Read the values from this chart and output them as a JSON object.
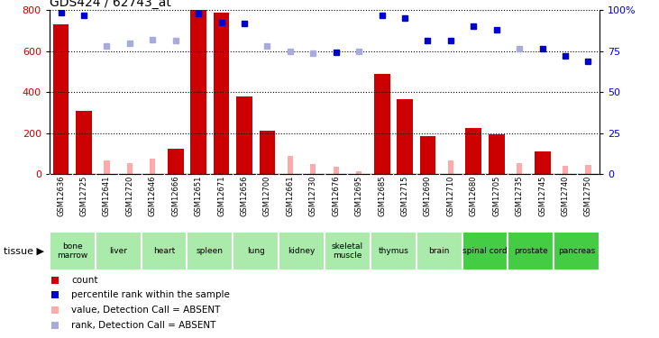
{
  "title": "GDS424 / 62743_at",
  "gsm_labels": [
    "GSM12636",
    "GSM12725",
    "GSM12641",
    "GSM12720",
    "GSM12646",
    "GSM12666",
    "GSM12651",
    "GSM12671",
    "GSM12656",
    "GSM12700",
    "GSM12661",
    "GSM12730",
    "GSM12676",
    "GSM12695",
    "GSM12685",
    "GSM12715",
    "GSM12690",
    "GSM12710",
    "GSM12680",
    "GSM12705",
    "GSM12735",
    "GSM12745",
    "GSM12740",
    "GSM12750"
  ],
  "tissue_spans": [
    {
      "label": "bone\nmarrow",
      "start": 0,
      "end": 2,
      "dark": false
    },
    {
      "label": "liver",
      "start": 2,
      "end": 4,
      "dark": false
    },
    {
      "label": "heart",
      "start": 4,
      "end": 6,
      "dark": false
    },
    {
      "label": "spleen",
      "start": 6,
      "end": 8,
      "dark": false
    },
    {
      "label": "lung",
      "start": 8,
      "end": 10,
      "dark": false
    },
    {
      "label": "kidney",
      "start": 10,
      "end": 12,
      "dark": false
    },
    {
      "label": "skeletal\nmuscle",
      "start": 12,
      "end": 14,
      "dark": false
    },
    {
      "label": "thymus",
      "start": 14,
      "end": 16,
      "dark": false
    },
    {
      "label": "brain",
      "start": 16,
      "end": 18,
      "dark": false
    },
    {
      "label": "spinal cord",
      "start": 18,
      "end": 20,
      "dark": true
    },
    {
      "label": "prostate",
      "start": 20,
      "end": 22,
      "dark": true
    },
    {
      "label": "pancreas",
      "start": 22,
      "end": 24,
      "dark": true
    }
  ],
  "count_values": [
    730,
    310,
    null,
    null,
    null,
    125,
    800,
    790,
    380,
    210,
    null,
    null,
    null,
    null,
    490,
    365,
    185,
    null,
    225,
    195,
    null,
    110,
    null,
    null
  ],
  "absent_count_values": [
    null,
    null,
    65,
    55,
    75,
    null,
    null,
    null,
    null,
    null,
    90,
    50,
    35,
    15,
    null,
    null,
    null,
    65,
    null,
    null,
    55,
    null,
    40,
    45
  ],
  "rank_present_pct": [
    98.75,
    96.875,
    null,
    null,
    null,
    null,
    98.125,
    92.5,
    91.875,
    null,
    null,
    null,
    74.375,
    null,
    96.875,
    95.0,
    81.25,
    81.25,
    90.0,
    88.125,
    null,
    76.25,
    71.875,
    68.75
  ],
  "rank_absent_pct": [
    null,
    null,
    78.125,
    80.0,
    81.875,
    81.25,
    null,
    null,
    null,
    78.125,
    75.0,
    73.75,
    null,
    75.0,
    null,
    null,
    null,
    null,
    null,
    null,
    76.25,
    null,
    null,
    null
  ],
  "ylim_left": [
    0,
    800
  ],
  "ylim_right": [
    0,
    100
  ],
  "yticks_left": [
    0,
    200,
    400,
    600,
    800
  ],
  "yticks_right": [
    0,
    25,
    50,
    75,
    100
  ],
  "color_count": "#cc0000",
  "color_rank": "#0000cc",
  "color_absent_count": "#ffaaaa",
  "color_absent_rank": "#aaaadd",
  "bg_gsm_color": "#d8d8d8",
  "tissue_green_light": "#aaeaaa",
  "tissue_green_dark": "#44cc44"
}
